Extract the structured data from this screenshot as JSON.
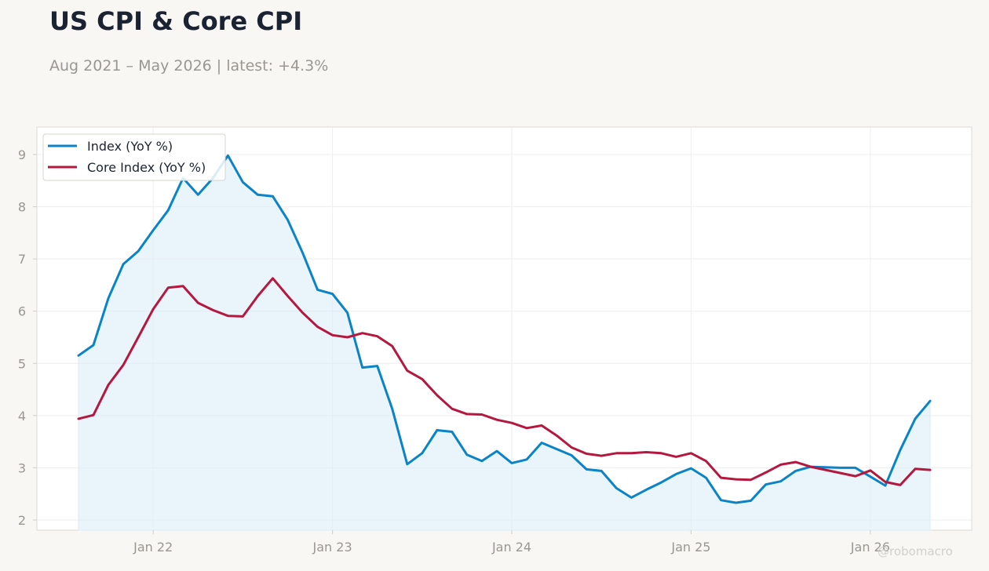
{
  "header": {
    "title": "US CPI & Core CPI",
    "subtitle": "Aug 2021 – May 2026 | latest: +4.3%"
  },
  "watermark": "@robomacro",
  "colors": {
    "background": "#f8f7f4",
    "plot_background": "#ffffff",
    "index": "#0a84c6",
    "core": "#b5183f",
    "fill": "#dcecf8",
    "grid": "#eeeeee",
    "tick_text": "#9a9791",
    "title": "#1b2333"
  },
  "chart_data": {
    "type": "line",
    "title": "US CPI & Core CPI",
    "subtitle": "Aug 2021 – May 2026 | latest: +4.3%",
    "xlabel": "",
    "ylabel": "",
    "x_start": "2021-08",
    "x_end": "2026-05",
    "x": [
      "2021-08",
      "2021-09",
      "2021-10",
      "2021-11",
      "2021-12",
      "2022-01",
      "2022-02",
      "2022-03",
      "2022-04",
      "2022-05",
      "2022-06",
      "2022-07",
      "2022-08",
      "2022-09",
      "2022-10",
      "2022-11",
      "2022-12",
      "2023-01",
      "2023-02",
      "2023-03",
      "2023-04",
      "2023-05",
      "2023-06",
      "2023-07",
      "2023-08",
      "2023-09",
      "2023-10",
      "2023-11",
      "2023-12",
      "2024-01",
      "2024-02",
      "2024-03",
      "2024-04",
      "2024-05",
      "2024-06",
      "2024-07",
      "2024-08",
      "2024-09",
      "2024-10",
      "2024-11",
      "2024-12",
      "2025-01",
      "2025-02",
      "2025-03",
      "2025-04",
      "2025-05",
      "2025-06",
      "2025-07",
      "2025-08",
      "2025-09",
      "2025-10",
      "2025-11",
      "2025-12",
      "2026-01",
      "2026-02",
      "2026-03",
      "2026-04",
      "2026-05"
    ],
    "x_ticks": [
      "2022-01",
      "2023-01",
      "2024-01",
      "2025-01",
      "2026-01"
    ],
    "x_tick_labels": [
      "Jan 22",
      "Jan 23",
      "Jan 24",
      "Jan 25",
      "Jan 26"
    ],
    "ylim": [
      1.8,
      9.5
    ],
    "y_ticks": [
      2,
      3,
      4,
      5,
      6,
      7,
      8,
      9
    ],
    "grid": true,
    "legend_position": "top-left",
    "series": [
      {
        "name": "Index (YoY %)",
        "color": "#0a84c6",
        "fill": true,
        "values": [
          5.15,
          5.35,
          6.25,
          6.9,
          7.15,
          7.55,
          7.93,
          8.55,
          8.23,
          8.55,
          8.98,
          8.47,
          8.23,
          8.2,
          7.75,
          7.12,
          6.41,
          6.33,
          5.97,
          4.92,
          4.95,
          4.13,
          3.07,
          3.28,
          3.72,
          3.69,
          3.25,
          3.13,
          3.32,
          3.09,
          3.16,
          3.48,
          3.36,
          3.24,
          2.97,
          2.94,
          2.61,
          2.43,
          2.58,
          2.72,
          2.88,
          2.99,
          2.81,
          2.38,
          2.33,
          2.37,
          2.68,
          2.74,
          2.94,
          3.02,
          3.01,
          3.0,
          3.0,
          2.83,
          2.66,
          3.34,
          3.94,
          4.28
        ]
      },
      {
        "name": "Core Index (YoY %)",
        "color": "#b5183f",
        "fill": false,
        "values": [
          3.94,
          4.01,
          4.59,
          4.97,
          5.5,
          6.04,
          6.45,
          6.48,
          6.16,
          6.02,
          5.91,
          5.9,
          6.29,
          6.63,
          6.29,
          5.97,
          5.7,
          5.54,
          5.5,
          5.58,
          5.52,
          5.33,
          4.86,
          4.7,
          4.39,
          4.13,
          4.03,
          4.02,
          3.92,
          3.86,
          3.76,
          3.81,
          3.62,
          3.39,
          3.27,
          3.23,
          3.28,
          3.28,
          3.3,
          3.28,
          3.21,
          3.28,
          3.13,
          2.81,
          2.78,
          2.77,
          2.91,
          3.06,
          3.11,
          3.02,
          2.96,
          2.9,
          2.84,
          2.95,
          2.73,
          2.67,
          2.98,
          2.96
        ]
      }
    ]
  }
}
